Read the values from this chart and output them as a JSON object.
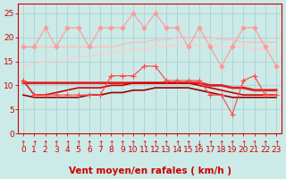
{
  "background_color": "#cceae7",
  "grid_color": "#aad4d0",
  "xlabel": "Vent moyen/en rafales ( km/h )",
  "xlabel_color": "#cc0000",
  "xlabel_fontsize": 7.5,
  "ylim": [
    0,
    27
  ],
  "xlim": [
    -0.5,
    23.5
  ],
  "yticks": [
    0,
    5,
    10,
    15,
    20,
    25
  ],
  "xticks": [
    0,
    1,
    2,
    3,
    4,
    5,
    6,
    7,
    8,
    9,
    10,
    11,
    12,
    13,
    14,
    15,
    16,
    17,
    18,
    19,
    20,
    21,
    22,
    23
  ],
  "tick_color": "#cc0000",
  "tick_fontsize": 6.5,
  "series": [
    {
      "name": "rafales_zigzag",
      "color": "#ff9999",
      "linewidth": 0.8,
      "marker": "D",
      "markersize": 2.5,
      "zorder": 3,
      "data": [
        18,
        18,
        22,
        18,
        22,
        22,
        18,
        22,
        22,
        22,
        25,
        22,
        25,
        22,
        22,
        18,
        22,
        18,
        14,
        18,
        22,
        22,
        18,
        14
      ]
    },
    {
      "name": "rafales_trend_upper",
      "color": "#ffbbbb",
      "linewidth": 1.0,
      "marker": null,
      "markersize": 0,
      "zorder": 2,
      "data": [
        18,
        18,
        18,
        18,
        18,
        18,
        18,
        18,
        18,
        18.5,
        19,
        19,
        19.5,
        19.5,
        20,
        20,
        20,
        20,
        19.5,
        19.5,
        19,
        19,
        19,
        19
      ]
    },
    {
      "name": "rafales_trend_lower",
      "color": "#ffcccc",
      "linewidth": 1.0,
      "marker": null,
      "markersize": 0,
      "zorder": 2,
      "data": [
        14,
        14.5,
        15,
        15,
        15.5,
        16,
        16,
        16.5,
        17,
        17,
        17.5,
        17.5,
        18,
        18,
        18.5,
        18.5,
        18.5,
        18.5,
        18,
        18,
        18,
        17.5,
        17.5,
        17
      ]
    },
    {
      "name": "vent_moyen_zigzag",
      "color": "#ff4444",
      "linewidth": 0.8,
      "marker": "+",
      "markersize": 4,
      "zorder": 4,
      "data": [
        11,
        8,
        8,
        8,
        8,
        8,
        8,
        8,
        12,
        12,
        12,
        14,
        14,
        11,
        11,
        11,
        11,
        8,
        8,
        4,
        11,
        12,
        8,
        8
      ]
    },
    {
      "name": "vent_moyen_trend",
      "color": "#dd2222",
      "linewidth": 2.0,
      "marker": null,
      "markersize": 0,
      "zorder": 3,
      "data": [
        10.5,
        10.5,
        10.5,
        10.5,
        10.5,
        10.5,
        10.5,
        10.5,
        10.5,
        10.5,
        10.5,
        10.5,
        10.5,
        10.5,
        10.5,
        10.5,
        10.5,
        10,
        10,
        9.5,
        9.5,
        9,
        9,
        9
      ]
    },
    {
      "name": "vent_moyen_smooth",
      "color": "#cc0000",
      "linewidth": 1.2,
      "marker": null,
      "markersize": 0,
      "zorder": 3,
      "data": [
        11,
        8,
        8,
        8.5,
        9,
        9.5,
        9.5,
        9.5,
        10,
        10,
        10.5,
        10.5,
        10.5,
        10.5,
        10.5,
        10.5,
        10,
        9.5,
        9,
        8.5,
        8,
        8,
        8,
        8
      ]
    },
    {
      "name": "vent_min_smooth",
      "color": "#990000",
      "linewidth": 1.2,
      "marker": null,
      "markersize": 0,
      "zorder": 3,
      "data": [
        8,
        7.5,
        7.5,
        7.5,
        7.5,
        7.5,
        8,
        8,
        8.5,
        8.5,
        9,
        9,
        9.5,
        9.5,
        9.5,
        9.5,
        9,
        8.5,
        8,
        7.5,
        7.5,
        7.5,
        7.5,
        7.5
      ]
    }
  ],
  "arrows": {
    "up_indices": [
      0,
      1,
      2,
      3,
      4,
      5,
      6,
      7,
      8,
      9,
      10,
      11,
      12,
      13,
      14,
      15,
      17,
      18,
      19,
      20,
      21,
      22,
      23
    ],
    "down_indices": [
      16
    ],
    "up_color": "#cc0000",
    "down_color": "#880000"
  }
}
